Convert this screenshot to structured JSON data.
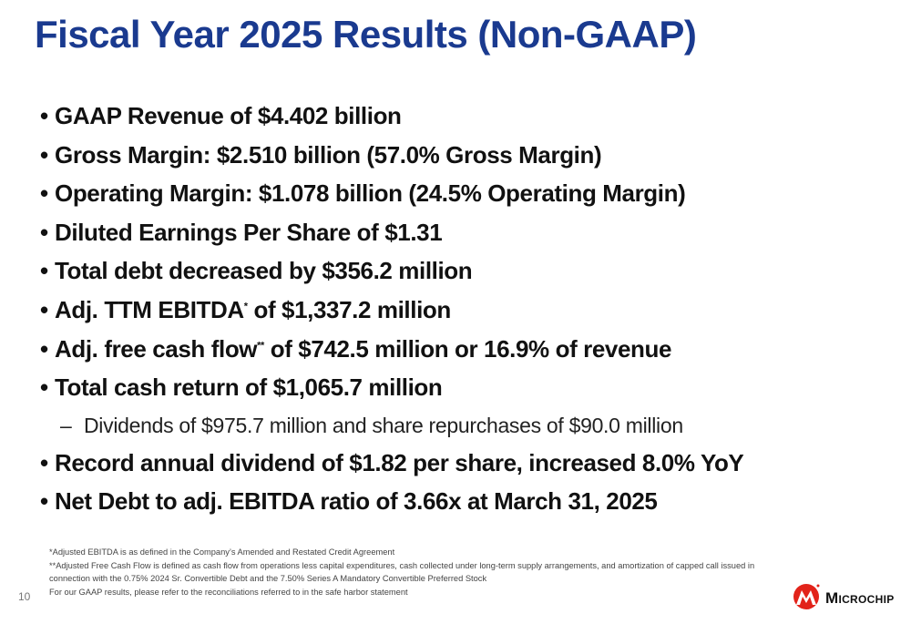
{
  "slide": {
    "title": "Fiscal Year 2025 Results (Non-GAAP)",
    "page_number": "10"
  },
  "bullets": [
    {
      "type": "bullet",
      "text": "GAAP Revenue of $4.402 billion"
    },
    {
      "type": "bullet",
      "text": "Gross Margin: $2.510 billion (57.0% Gross Margin)"
    },
    {
      "type": "bullet",
      "text": "Operating Margin: $1.078 billion (24.5% Operating Margin)"
    },
    {
      "type": "bullet",
      "text": "Diluted Earnings Per Share of $1.31"
    },
    {
      "type": "bullet",
      "text": "Total debt decreased by $356.2 million"
    },
    {
      "type": "bullet",
      "text_before": "Adj. TTM EBITDA",
      "sup": "*",
      "text_after": " of $1,337.2 million"
    },
    {
      "type": "bullet",
      "text_before": "Adj. free cash flow",
      "sup": "**",
      "text_after": " of $742.5 million or 16.9% of revenue"
    },
    {
      "type": "bullet",
      "text": "Total cash return of $1,065.7 million"
    },
    {
      "type": "sub",
      "text": "Dividends of $975.7 million and share repurchases of $90.0 million"
    },
    {
      "type": "bullet",
      "text": "Record annual dividend of $1.82 per share, increased 8.0% YoY"
    },
    {
      "type": "bullet",
      "text": "Net Debt to adj. EBITDA ratio of 3.66x at March 31, 2025"
    }
  ],
  "markers": {
    "bullet": "•",
    "sub": "–"
  },
  "footnotes": [
    "*Adjusted EBITDA is as defined in the Company’s Amended and Restated Credit Agreement",
    "**Adjusted Free Cash Flow is defined as cash flow from operations less capital expenditures, cash collected under long-term supply arrangements, and amortization of capped call issued in",
    "connection with the 0.75% 2024 Sr. Convertible Debt and the 7.50% Series A Mandatory Convertible Preferred Stock",
    "For our GAAP results, please refer to the reconciliations referred to in the safe harbor statement"
  ],
  "logo": {
    "text": "Microchip",
    "icon": "microchip-logo-icon",
    "color": "#e2231a"
  },
  "colors": {
    "title": "#1a3a8f",
    "body": "#111111"
  }
}
